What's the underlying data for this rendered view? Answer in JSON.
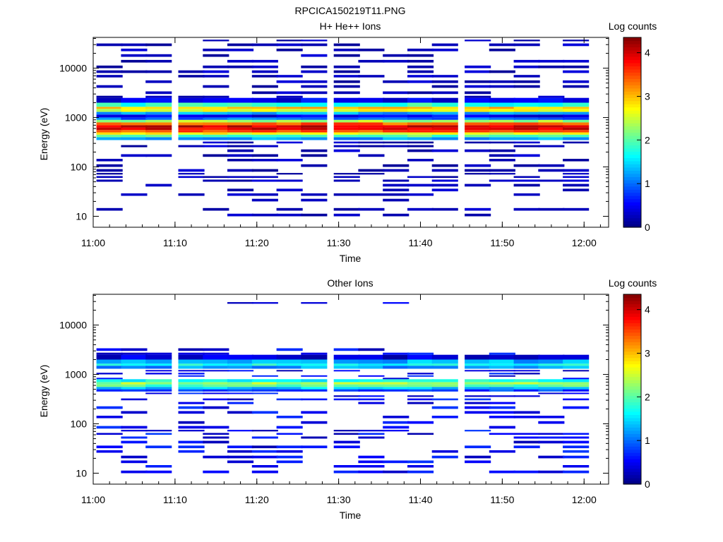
{
  "figure": {
    "title": "RPCICA150219T11.PNG"
  },
  "colorbar": {
    "label": "Log counts",
    "ticks": [
      "0",
      "1",
      "2",
      "3",
      "4"
    ],
    "vmin": 0,
    "vmax": 4.35,
    "colormap": "jet"
  },
  "chart_data": [
    {
      "type": "heatmap",
      "title": "H+ He++ Ions",
      "xlabel": "Time",
      "ylabel": "Energy (eV)",
      "x_ticks": [
        "11:00",
        "11:10",
        "11:20",
        "11:30",
        "11:40",
        "11:50",
        "12:00"
      ],
      "x_range": [
        "11:00",
        "12:03"
      ],
      "y_ticks": [
        "10",
        "100",
        "1000",
        "10000"
      ],
      "y_scale": "log",
      "y_range": [
        6,
        42000
      ],
      "z_label": "Log counts",
      "z_range": [
        0,
        4.35
      ],
      "time_bins": [
        "11:02",
        "11:05",
        "11:08",
        "11:12",
        "11:15",
        "11:18",
        "11:21",
        "11:24",
        "11:27",
        "11:31",
        "11:34",
        "11:37",
        "11:40",
        "11:43",
        "11:47",
        "11:50",
        "11:53",
        "11:56",
        "11:59"
      ],
      "energy_bins_eV": [
        10,
        13,
        20,
        26,
        32,
        40,
        50,
        60,
        70,
        80,
        100,
        130,
        160,
        200,
        250,
        300,
        350,
        400,
        450,
        500,
        560,
        630,
        700,
        800,
        900,
        1000,
        1150,
        1300,
        1500,
        1650,
        2000,
        2500,
        3000,
        4000,
        5000,
        6500,
        8000,
        10000,
        13000,
        17000,
        22000,
        28000,
        35000
      ],
      "band_profile_log_counts": [
        {
          "energy_eV": 350,
          "value": 1.2
        },
        {
          "energy_eV": 400,
          "value": 2.0
        },
        {
          "energy_eV": 450,
          "value": 2.7
        },
        {
          "energy_eV": 500,
          "value": 3.5
        },
        {
          "energy_eV": 560,
          "value": 3.9
        },
        {
          "energy_eV": 630,
          "value": 4.0
        },
        {
          "energy_eV": 700,
          "value": 3.4
        },
        {
          "energy_eV": 800,
          "value": 2.3
        },
        {
          "energy_eV": 900,
          "value": 1.0
        },
        {
          "energy_eV": 1000,
          "value": 0.5
        },
        {
          "energy_eV": 1150,
          "value": 1.3
        },
        {
          "energy_eV": 1300,
          "value": 2.6
        },
        {
          "energy_eV": 1500,
          "value": 3.0
        },
        {
          "energy_eV": 1650,
          "value": 1.8
        },
        {
          "energy_eV": 2000,
          "value": 0.5
        }
      ],
      "sparse_level_log_counts": 0.1
    },
    {
      "type": "heatmap",
      "title": "Other Ions",
      "xlabel": "Time",
      "ylabel": "Energy (eV)",
      "x_ticks": [
        "11:00",
        "11:10",
        "11:20",
        "11:30",
        "11:40",
        "11:50",
        "12:00"
      ],
      "x_range": [
        "11:00",
        "12:03"
      ],
      "y_ticks": [
        "10",
        "100",
        "1000",
        "10000"
      ],
      "y_scale": "log",
      "y_range": [
        6,
        42000
      ],
      "z_label": "Log counts",
      "z_range": [
        0,
        4.35
      ],
      "time_bins": [
        "11:02",
        "11:05",
        "11:08",
        "11:12",
        "11:15",
        "11:18",
        "11:21",
        "11:24",
        "11:27",
        "11:31",
        "11:34",
        "11:37",
        "11:40",
        "11:43",
        "11:47",
        "11:50",
        "11:53",
        "11:56",
        "11:59"
      ],
      "energy_bins_eV": [
        10,
        13,
        16,
        20,
        26,
        32,
        40,
        50,
        60,
        70,
        80,
        100,
        130,
        160,
        200,
        250,
        300,
        350,
        400,
        450,
        500,
        560,
        630,
        700,
        800,
        900,
        1000,
        1150,
        1300,
        1500,
        1650,
        2000,
        2500,
        3000,
        27000
      ],
      "band_profile_log_counts": [
        {
          "energy_eV": 450,
          "value": 0.8
        },
        {
          "energy_eV": 500,
          "value": 1.4
        },
        {
          "energy_eV": 560,
          "value": 2.0
        },
        {
          "energy_eV": 630,
          "value": 2.3
        },
        {
          "energy_eV": 700,
          "value": 1.7
        },
        {
          "energy_eV": 1300,
          "value": 1.2
        },
        {
          "energy_eV": 1500,
          "value": 1.7
        },
        {
          "energy_eV": 1650,
          "value": 1.3
        },
        {
          "energy_eV": 2000,
          "value": 0.4
        }
      ],
      "sparse_level_log_counts": 0.2
    }
  ]
}
